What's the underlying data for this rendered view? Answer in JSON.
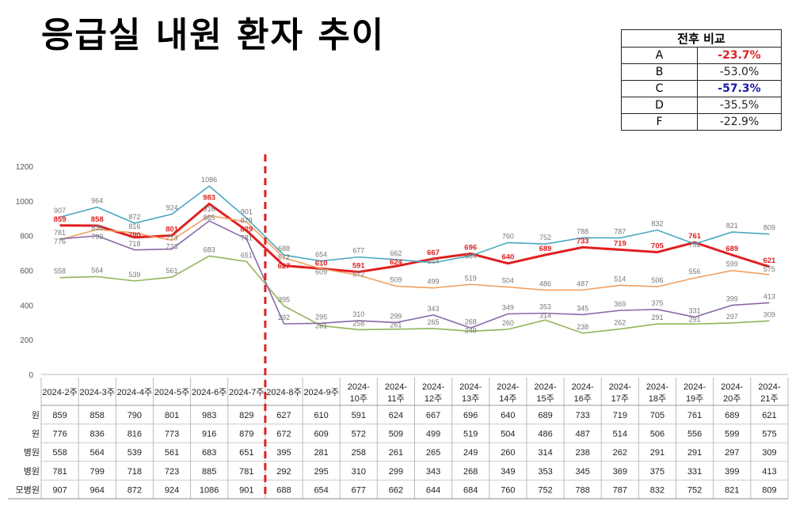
{
  "title": "응급실 내원 환자 추이",
  "comparison": {
    "header": "전후 비교",
    "rows": [
      {
        "label": "A",
        "value": "-23.7%",
        "color": "#e02020",
        "bold": true
      },
      {
        "label": "B",
        "value": "-53.0%",
        "color": "#222222",
        "bold": false
      },
      {
        "label": "C",
        "value": "-57.3%",
        "color": "#1a1aa6",
        "bold": true
      },
      {
        "label": "D",
        "value": "-35.5%",
        "color": "#222222",
        "bold": false
      },
      {
        "label": "F",
        "value": "-22.9%",
        "color": "#222222",
        "bold": false
      }
    ]
  },
  "chart_data": {
    "type": "line",
    "ylim": [
      0,
      1200
    ],
    "yticks": [
      "0",
      "200",
      "400",
      "600",
      "800",
      "1000",
      "1200"
    ],
    "categories": [
      "2024-2주",
      "2024-3주",
      "2024-4주",
      "2024-5주",
      "2024-6주",
      "2024-7주",
      "2024-8주",
      "2024-9주",
      "2024-10주",
      "2024-11주",
      "2024-12주",
      "2024-13주",
      "2024-14주",
      "2024-15주",
      "2024-16주",
      "2024-17주",
      "2024-18주",
      "2024-19주",
      "2024-20주",
      "2024-21주"
    ],
    "divider_after": "2024-7주",
    "series": [
      {
        "name": "원",
        "color": "#e02020",
        "values": [
          859,
          858,
          790,
          801,
          983,
          829,
          627,
          610,
          591,
          624,
          667,
          696,
          640,
          689,
          733,
          719,
          705,
          761,
          689,
          621
        ]
      },
      {
        "name": "원",
        "color": "#f0a060",
        "values": [
          776,
          836,
          816,
          773,
          916,
          879,
          672,
          609,
          572,
          509,
          499,
          519,
          504,
          486,
          487,
          514,
          506,
          556,
          599,
          575
        ]
      },
      {
        "name": "병원",
        "color": "#92b458",
        "values": [
          558,
          564,
          539,
          561,
          683,
          651,
          395,
          281,
          258,
          261,
          265,
          249,
          260,
          314,
          238,
          262,
          291,
          291,
          297,
          309
        ]
      },
      {
        "name": "병원",
        "color": "#8a6aa8",
        "values": [
          781,
          799,
          718,
          723,
          885,
          781,
          292,
          295,
          310,
          299,
          343,
          268,
          349,
          353,
          345,
          369,
          375,
          331,
          399,
          413
        ]
      },
      {
        "name": "모병원",
        "color": "#4aa8c0",
        "values": [
          907,
          964,
          872,
          924,
          1086,
          901,
          688,
          654,
          677,
          662,
          644,
          684,
          760,
          752,
          788,
          787,
          832,
          752,
          821,
          809
        ]
      }
    ]
  }
}
